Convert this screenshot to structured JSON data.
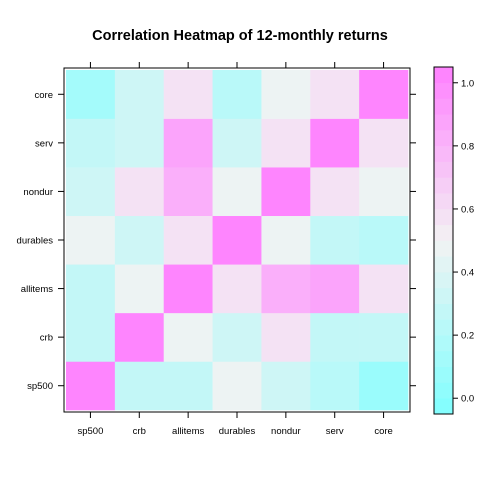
{
  "chart_data": {
    "type": "heatmap",
    "title": "Correlation Heatmap of 12-monthly returns",
    "xlabel": "",
    "ylabel": "",
    "x_categories": [
      "sp500",
      "crb",
      "allitems",
      "durables",
      "nondur",
      "serv",
      "core"
    ],
    "y_categories": [
      "sp500",
      "crb",
      "allitems",
      "durables",
      "nondur",
      "serv",
      "core"
    ],
    "values": [
      [
        1.0,
        0.3,
        0.3,
        0.45,
        0.35,
        0.2,
        0.05
      ],
      [
        0.3,
        1.0,
        0.45,
        0.35,
        0.6,
        0.3,
        0.3
      ],
      [
        0.3,
        0.45,
        1.0,
        0.55,
        0.8,
        0.85,
        0.55
      ],
      [
        0.45,
        0.35,
        0.55,
        1.0,
        0.45,
        0.3,
        0.2
      ],
      [
        0.35,
        0.6,
        0.8,
        0.45,
        1.0,
        0.6,
        0.45
      ],
      [
        0.25,
        0.35,
        0.85,
        0.35,
        0.6,
        1.0,
        0.55
      ],
      [
        0.1,
        0.35,
        0.55,
        0.2,
        0.45,
        0.55,
        1.0
      ]
    ],
    "colorbar": {
      "range": [
        -0.05,
        1.05
      ],
      "ticks": [
        0.0,
        0.2,
        0.4,
        0.6,
        0.8,
        1.0
      ],
      "tick_labels": [
        "0.0",
        "0.2",
        "0.4",
        "0.6",
        "0.8",
        "1.0"
      ],
      "low_color": "#80ffff",
      "high_color": "#ff80ff",
      "mid_color": "#f2f2f2",
      "bins": 22
    },
    "grid": false,
    "legend": "right"
  }
}
